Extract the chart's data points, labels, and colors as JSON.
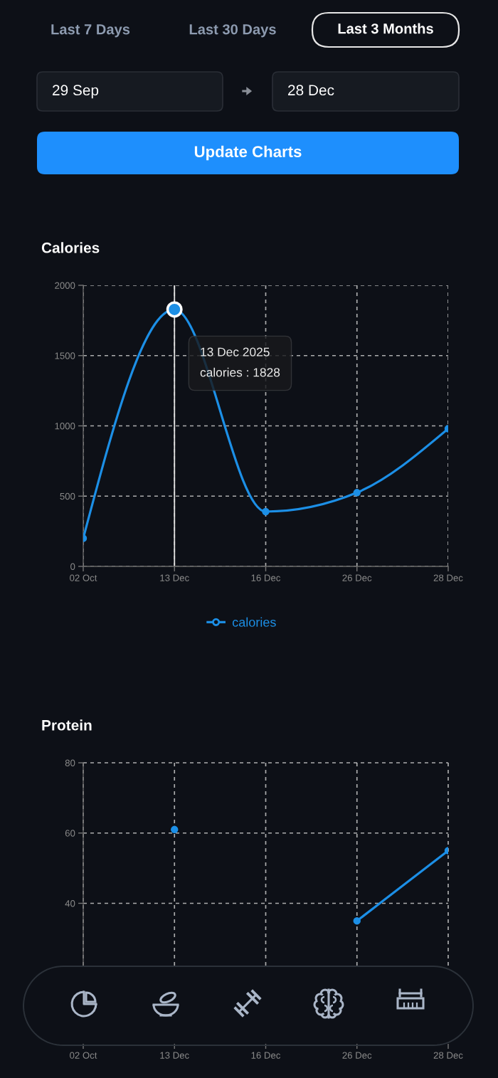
{
  "chart_data": [
    {
      "type": "other",
      "annotations": [
        "Last 7 Days",
        "Last 30 Days",
        "Last 3 Months",
        "29 Sep",
        "28 Dec",
        "Update Charts"
      ]
    },
    {
      "type": "line",
      "title": "Calories",
      "categories": [
        "02 Oct",
        "13 Dec",
        "16 Dec",
        "26 Dec",
        "28 Dec"
      ],
      "series": [
        {
          "name": "calories",
          "color": "#1c8fe6",
          "values": [
            200,
            1828,
            390,
            525,
            980
          ]
        }
      ],
      "ylim": [
        0,
        2000
      ],
      "yticks": [
        0,
        500,
        1000,
        1500,
        2000
      ],
      "grid": true,
      "legend": "bottom",
      "marker": "circle",
      "line_style": "solid",
      "ref_lines": [
        {
          "axis": "x",
          "value": "13 Dec",
          "color": "#e2e2e2"
        }
      ],
      "annotations": [
        "13 Dec 2025\ncalories : 1828"
      ]
    },
    {
      "type": "line",
      "title": "Protein",
      "categories": [
        "02 Oct",
        "13 Dec",
        "16 Dec",
        "26 Dec",
        "28 Dec"
      ],
      "series": [
        {
          "color": "#1c8fe6",
          "values": [
            null,
            61,
            null,
            35,
            55
          ]
        }
      ],
      "ylim": [
        0,
        80
      ],
      "yticks": [
        40,
        60,
        80
      ],
      "grid": true,
      "marker": "circle",
      "line_style": "solid"
    }
  ]
}
